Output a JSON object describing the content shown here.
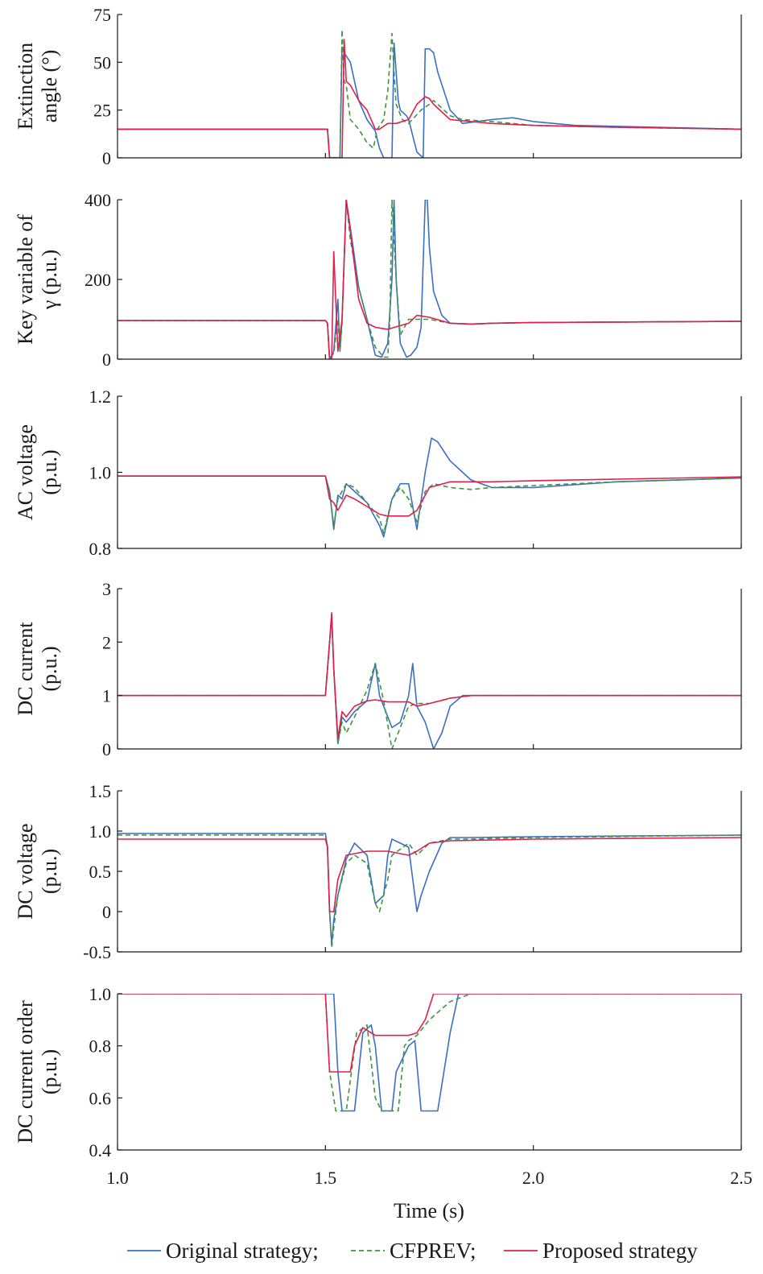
{
  "colors": {
    "original": "#3b6fc4",
    "cfprev": "#3f9440",
    "proposed": "#e0204a",
    "axis": "#1a1a1a"
  },
  "legend": {
    "original": "Original strategy;",
    "cfprev": "CFPREV;",
    "proposed": "Proposed strategy"
  },
  "x_axis": {
    "label": "Time (s)",
    "lim": [
      1.0,
      2.5
    ],
    "ticks": [
      1.0,
      1.5,
      2.0,
      2.5
    ],
    "tick_labels": [
      "1.0",
      "1.5",
      "2.0",
      "2.5"
    ]
  },
  "chart_data": [
    {
      "type": "line",
      "ylabel": [
        "Extinction",
        "angle (°)"
      ],
      "ylim": [
        0,
        75
      ],
      "yticks": [
        0,
        25,
        50,
        75
      ],
      "ytick_labels": [
        "0",
        "25",
        "50",
        "75"
      ],
      "series": [
        {
          "name": "Original strategy",
          "key": "original",
          "dash": "",
          "x": [
            1.0,
            1.5,
            1.505,
            1.51,
            1.535,
            1.54,
            1.545,
            1.56,
            1.58,
            1.6,
            1.62,
            1.63,
            1.64,
            1.66,
            1.665,
            1.675,
            1.68,
            1.695,
            1.7,
            1.72,
            1.735,
            1.74,
            1.75,
            1.76,
            1.77,
            1.8,
            1.83,
            1.9,
            1.95,
            2.0,
            2.1,
            2.3,
            2.5
          ],
          "y": [
            15,
            15,
            15,
            0,
            0,
            58,
            55,
            50,
            30,
            20,
            14,
            5,
            0,
            0,
            60,
            30,
            25,
            22,
            20,
            3,
            0,
            57,
            57,
            55,
            45,
            25,
            18,
            20,
            21,
            19,
            17,
            16,
            15
          ]
        },
        {
          "name": "CFPREV",
          "key": "cfprev",
          "dash": "6,4",
          "x": [
            1.0,
            1.5,
            1.505,
            1.51,
            1.535,
            1.54,
            1.545,
            1.55,
            1.56,
            1.58,
            1.6,
            1.615,
            1.625,
            1.64,
            1.65,
            1.66,
            1.665,
            1.67,
            1.685,
            1.7,
            1.73,
            1.75,
            1.76,
            1.8,
            1.83,
            1.9,
            2.0,
            2.2,
            2.5
          ],
          "y": [
            15,
            15,
            15,
            0,
            0,
            67,
            40,
            38,
            20,
            15,
            8,
            5,
            15,
            20,
            35,
            65,
            45,
            28,
            20,
            18,
            25,
            28,
            30,
            22,
            20,
            19,
            17,
            16,
            15
          ]
        },
        {
          "name": "Proposed strategy",
          "key": "proposed",
          "dash": "",
          "x": [
            1.0,
            1.5,
            1.505,
            1.51,
            1.54,
            1.545,
            1.55,
            1.56,
            1.58,
            1.6,
            1.62,
            1.63,
            1.65,
            1.67,
            1.7,
            1.72,
            1.74,
            1.75,
            1.76,
            1.8,
            1.9,
            2.0,
            2.2,
            2.5
          ],
          "y": [
            15,
            15,
            15,
            0,
            0,
            62,
            40,
            38,
            30,
            25,
            15,
            15,
            18,
            18,
            20,
            28,
            32,
            31,
            28,
            20,
            18,
            17,
            16,
            15
          ]
        }
      ]
    },
    {
      "type": "line",
      "ylabel": [
        "Key variable of",
        "γ (p.u.)"
      ],
      "ylim": [
        0,
        400
      ],
      "yticks": [
        0,
        200,
        400
      ],
      "ytick_labels": [
        "0",
        "200",
        "400"
      ],
      "series": [
        {
          "name": "Original strategy",
          "key": "original",
          "dash": "",
          "x": [
            1.0,
            1.5,
            1.505,
            1.51,
            1.52,
            1.53,
            1.535,
            1.54,
            1.55,
            1.56,
            1.58,
            1.6,
            1.62,
            1.635,
            1.65,
            1.66,
            1.665,
            1.67,
            1.68,
            1.695,
            1.705,
            1.72,
            1.73,
            1.74,
            1.745,
            1.75,
            1.76,
            1.78,
            1.8,
            1.85,
            1.9,
            2.0,
            2.5
          ],
          "y": [
            97,
            97,
            90,
            0,
            20,
            150,
            20,
            100,
            400,
            330,
            180,
            100,
            10,
            5,
            40,
            200,
            400,
            200,
            40,
            5,
            10,
            30,
            80,
            400,
            400,
            280,
            170,
            110,
            90,
            88,
            90,
            92,
            95
          ]
        },
        {
          "name": "CFPREV",
          "key": "cfprev",
          "dash": "6,4",
          "x": [
            1.0,
            1.5,
            1.505,
            1.51,
            1.52,
            1.53,
            1.535,
            1.54,
            1.55,
            1.56,
            1.58,
            1.6,
            1.62,
            1.64,
            1.65,
            1.655,
            1.66,
            1.67,
            1.68,
            1.7,
            1.72,
            1.75,
            1.8,
            1.85,
            1.9,
            2.0,
            2.5
          ],
          "y": [
            97,
            97,
            90,
            0,
            15,
            100,
            20,
            90,
            400,
            300,
            180,
            100,
            30,
            5,
            5,
            100,
            400,
            200,
            60,
            100,
            100,
            100,
            90,
            88,
            90,
            92,
            95
          ]
        },
        {
          "name": "Proposed strategy",
          "key": "proposed",
          "dash": "",
          "x": [
            1.0,
            1.5,
            1.505,
            1.51,
            1.515,
            1.52,
            1.53,
            1.54,
            1.55,
            1.56,
            1.58,
            1.6,
            1.62,
            1.65,
            1.7,
            1.72,
            1.75,
            1.8,
            1.85,
            1.9,
            2.0,
            2.5
          ],
          "y": [
            97,
            97,
            90,
            0,
            0,
            270,
            20,
            100,
            400,
            320,
            150,
            90,
            80,
            75,
            90,
            110,
            105,
            90,
            88,
            90,
            92,
            95
          ]
        }
      ]
    },
    {
      "type": "line",
      "ylabel": [
        "AC voltage",
        "(p.u.)"
      ],
      "ylim": [
        0.8,
        1.2
      ],
      "yticks": [
        0.8,
        1.0,
        1.2
      ],
      "ytick_labels": [
        "0.8",
        "1.0",
        "1.2"
      ],
      "series": [
        {
          "name": "Original strategy",
          "key": "original",
          "dash": "",
          "x": [
            1.0,
            1.5,
            1.51,
            1.52,
            1.53,
            1.54,
            1.55,
            1.57,
            1.6,
            1.63,
            1.64,
            1.66,
            1.68,
            1.7,
            1.72,
            1.74,
            1.755,
            1.77,
            1.8,
            1.85,
            1.9,
            2.0,
            2.2,
            2.5
          ],
          "y": [
            0.99,
            0.99,
            0.95,
            0.85,
            0.94,
            0.93,
            0.97,
            0.95,
            0.92,
            0.86,
            0.83,
            0.93,
            0.97,
            0.97,
            0.85,
            1.0,
            1.09,
            1.08,
            1.03,
            0.98,
            0.96,
            0.96,
            0.975,
            0.985
          ]
        },
        {
          "name": "CFPREV",
          "key": "cfprev",
          "dash": "6,4",
          "x": [
            1.0,
            1.5,
            1.51,
            1.52,
            1.53,
            1.54,
            1.55,
            1.57,
            1.6,
            1.63,
            1.64,
            1.66,
            1.68,
            1.7,
            1.72,
            1.74,
            1.76,
            1.8,
            1.85,
            1.9,
            2.0,
            2.2,
            2.5
          ],
          "y": [
            0.99,
            0.99,
            0.95,
            0.86,
            0.93,
            0.95,
            0.97,
            0.96,
            0.92,
            0.88,
            0.84,
            0.93,
            0.96,
            0.93,
            0.87,
            0.95,
            0.97,
            0.96,
            0.955,
            0.96,
            0.965,
            0.975,
            0.985
          ]
        },
        {
          "name": "Proposed strategy",
          "key": "proposed",
          "dash": "",
          "x": [
            1.0,
            1.5,
            1.51,
            1.52,
            1.53,
            1.55,
            1.57,
            1.6,
            1.63,
            1.65,
            1.7,
            1.72,
            1.75,
            1.8,
            1.9,
            2.0,
            2.2,
            2.5
          ],
          "y": [
            0.99,
            0.99,
            0.93,
            0.92,
            0.9,
            0.94,
            0.93,
            0.91,
            0.89,
            0.885,
            0.885,
            0.9,
            0.96,
            0.975,
            0.975,
            0.978,
            0.982,
            0.988
          ]
        }
      ]
    },
    {
      "type": "line",
      "ylabel": [
        "DC current",
        "(p.u.)"
      ],
      "ylim": [
        0,
        3
      ],
      "yticks": [
        0,
        1,
        2,
        3
      ],
      "ytick_labels": [
        "0",
        "1",
        "2",
        "3"
      ],
      "series": [
        {
          "name": "Original strategy",
          "key": "original",
          "dash": "",
          "x": [
            1.0,
            1.5,
            1.51,
            1.515,
            1.52,
            1.53,
            1.54,
            1.55,
            1.57,
            1.6,
            1.62,
            1.63,
            1.66,
            1.68,
            1.7,
            1.71,
            1.72,
            1.74,
            1.76,
            1.78,
            1.8,
            1.83,
            1.9,
            2.0,
            2.5
          ],
          "y": [
            1.0,
            1.0,
            2.0,
            2.5,
            1.5,
            0.1,
            0.6,
            0.5,
            0.7,
            0.9,
            1.6,
            1.0,
            0.4,
            0.5,
            1.0,
            1.6,
            0.8,
            0.5,
            0.0,
            0.3,
            0.8,
            1.0,
            1.0,
            1.0,
            1.0
          ]
        },
        {
          "name": "CFPREV",
          "key": "cfprev",
          "dash": "6,4",
          "x": [
            1.0,
            1.5,
            1.51,
            1.515,
            1.52,
            1.53,
            1.54,
            1.55,
            1.57,
            1.6,
            1.62,
            1.64,
            1.66,
            1.68,
            1.7,
            1.72,
            1.75,
            1.8,
            1.85,
            2.0,
            2.5
          ],
          "y": [
            1.0,
            1.0,
            2.0,
            2.5,
            1.5,
            0.1,
            0.5,
            0.3,
            0.6,
            1.1,
            1.6,
            0.9,
            0.0,
            0.4,
            0.8,
            0.85,
            0.85,
            0.95,
            1.0,
            1.0,
            1.0
          ]
        },
        {
          "name": "Proposed strategy",
          "key": "proposed",
          "dash": "",
          "x": [
            1.0,
            1.5,
            1.51,
            1.515,
            1.52,
            1.53,
            1.54,
            1.55,
            1.57,
            1.6,
            1.62,
            1.65,
            1.7,
            1.72,
            1.75,
            1.8,
            1.85,
            2.0,
            2.5
          ],
          "y": [
            1.0,
            1.0,
            2.0,
            2.55,
            1.5,
            0.2,
            0.7,
            0.6,
            0.8,
            0.9,
            0.92,
            0.88,
            0.88,
            0.8,
            0.85,
            0.95,
            1.0,
            1.0,
            1.0
          ]
        }
      ]
    },
    {
      "type": "line",
      "ylabel": [
        "DC voltage",
        "(p.u.)"
      ],
      "ylim": [
        -0.5,
        1.5
      ],
      "yticks": [
        -0.5,
        0,
        0.5,
        1.0,
        1.5
      ],
      "ytick_labels": [
        "-0.5",
        "0",
        "0.5",
        "1.0",
        "1.5"
      ],
      "series": [
        {
          "name": "Original strategy",
          "key": "original",
          "dash": "",
          "x": [
            1.0,
            1.5,
            1.505,
            1.51,
            1.515,
            1.52,
            1.53,
            1.55,
            1.57,
            1.6,
            1.62,
            1.64,
            1.65,
            1.66,
            1.7,
            1.72,
            1.73,
            1.75,
            1.78,
            1.8,
            1.85,
            2.0,
            2.5
          ],
          "y": [
            0.97,
            0.97,
            0.8,
            0.0,
            -0.4,
            -0.1,
            0.2,
            0.65,
            0.85,
            0.7,
            0.1,
            0.2,
            0.7,
            0.9,
            0.8,
            0.0,
            0.2,
            0.5,
            0.85,
            0.92,
            0.92,
            0.93,
            0.95
          ]
        },
        {
          "name": "CFPREV",
          "key": "cfprev",
          "dash": "6,4",
          "x": [
            1.0,
            1.5,
            1.505,
            1.51,
            1.515,
            1.52,
            1.53,
            1.55,
            1.57,
            1.6,
            1.62,
            1.63,
            1.65,
            1.66,
            1.7,
            1.72,
            1.75,
            1.8,
            1.85,
            2.0,
            2.5
          ],
          "y": [
            0.95,
            0.95,
            0.8,
            0.0,
            -0.45,
            -0.2,
            0.2,
            0.6,
            0.7,
            0.6,
            0.1,
            0.0,
            0.4,
            0.7,
            0.85,
            0.7,
            0.85,
            0.9,
            0.9,
            0.92,
            0.95
          ]
        },
        {
          "name": "Proposed strategy",
          "key": "proposed",
          "dash": "",
          "x": [
            1.0,
            1.5,
            1.505,
            1.51,
            1.52,
            1.53,
            1.55,
            1.6,
            1.65,
            1.7,
            1.72,
            1.75,
            1.8,
            2.0,
            2.5
          ],
          "y": [
            0.9,
            0.9,
            0.8,
            0.0,
            0.0,
            0.4,
            0.7,
            0.75,
            0.75,
            0.7,
            0.75,
            0.85,
            0.88,
            0.9,
            0.92
          ]
        }
      ]
    },
    {
      "type": "line",
      "ylabel": [
        "DC current order",
        "(p.u.)"
      ],
      "ylim": [
        0.4,
        1.0
      ],
      "yticks": [
        0.4,
        0.6,
        0.8,
        1.0
      ],
      "ytick_labels": [
        "0.4",
        "0.6",
        "0.8",
        "1.0"
      ],
      "series": [
        {
          "name": "Original strategy",
          "key": "original",
          "dash": "",
          "x": [
            1.0,
            1.5,
            1.52,
            1.53,
            1.54,
            1.57,
            1.59,
            1.61,
            1.62,
            1.635,
            1.65,
            1.66,
            1.67,
            1.7,
            1.715,
            1.73,
            1.735,
            1.77,
            1.8,
            1.82,
            2.0,
            2.5
          ],
          "y": [
            1.0,
            1.0,
            1.0,
            0.7,
            0.55,
            0.55,
            0.85,
            0.88,
            0.8,
            0.55,
            0.55,
            0.55,
            0.7,
            0.8,
            0.82,
            0.55,
            0.55,
            0.55,
            0.85,
            1.0,
            1.0,
            1.0
          ]
        },
        {
          "name": "CFPREV",
          "key": "cfprev",
          "dash": "6,4",
          "x": [
            1.0,
            1.5,
            1.51,
            1.525,
            1.535,
            1.55,
            1.575,
            1.6,
            1.62,
            1.635,
            1.66,
            1.675,
            1.69,
            1.7,
            1.72,
            1.75,
            1.8,
            1.85,
            2.0,
            2.5
          ],
          "y": [
            1.0,
            1.0,
            0.7,
            0.55,
            0.55,
            0.55,
            0.85,
            0.88,
            0.6,
            0.55,
            0.55,
            0.55,
            0.8,
            0.82,
            0.84,
            0.9,
            0.97,
            1.0,
            1.0,
            1.0
          ]
        },
        {
          "name": "Proposed strategy",
          "key": "proposed",
          "dash": "",
          "x": [
            1.0,
            1.5,
            1.51,
            1.52,
            1.56,
            1.57,
            1.59,
            1.6,
            1.62,
            1.7,
            1.72,
            1.74,
            1.76,
            2.0,
            2.5
          ],
          "y": [
            1.0,
            1.0,
            0.7,
            0.7,
            0.7,
            0.8,
            0.87,
            0.86,
            0.84,
            0.84,
            0.85,
            0.9,
            1.0,
            1.0,
            1.0
          ]
        }
      ]
    }
  ]
}
